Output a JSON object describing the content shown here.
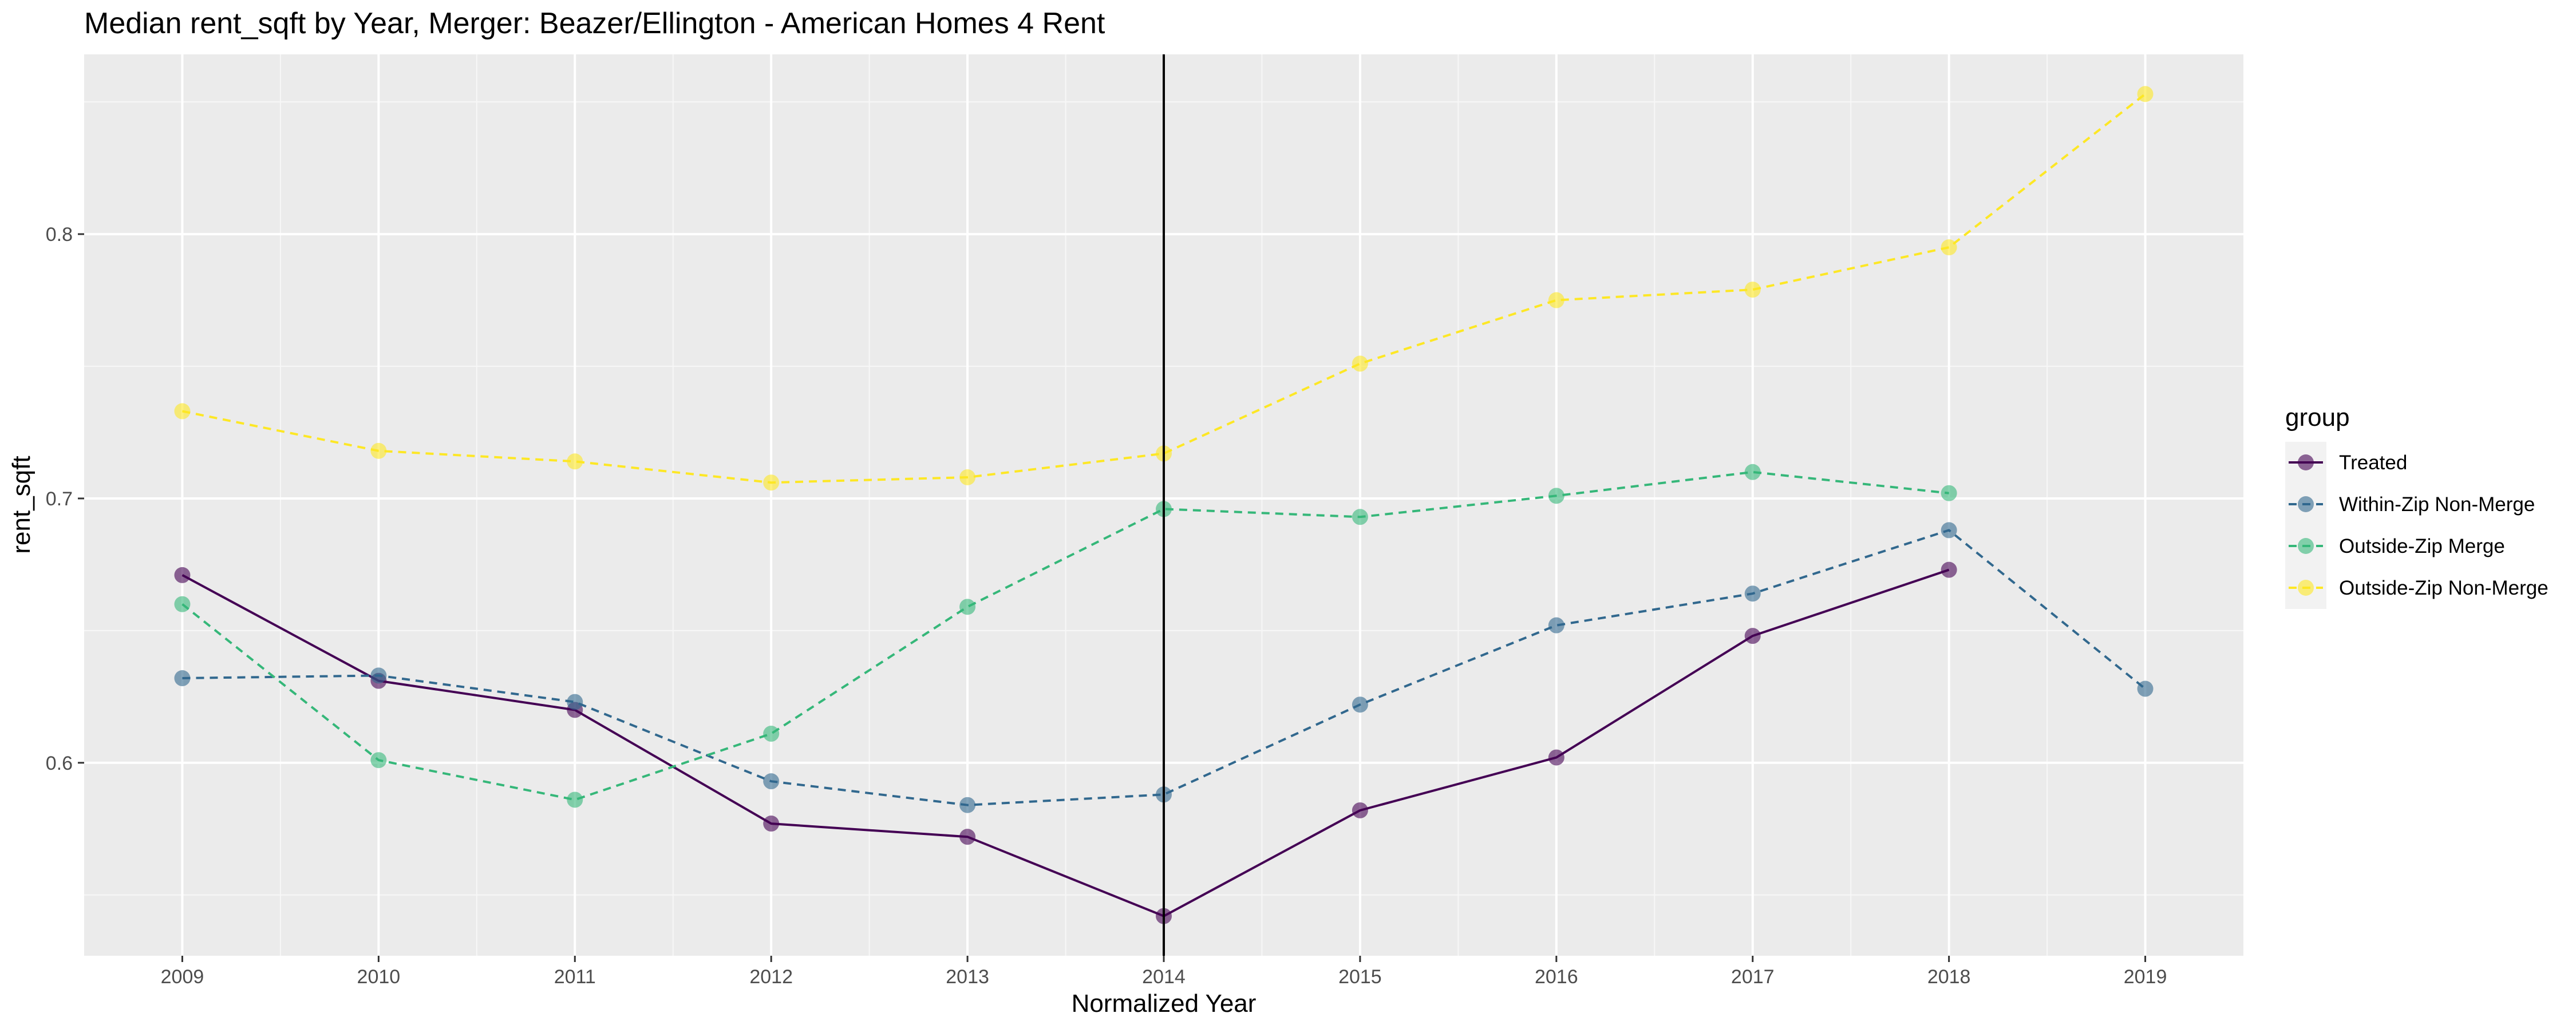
{
  "chart_data": {
    "type": "line",
    "title": "Median rent_sqft by Year, Merger: Beazer/Ellington - American Homes 4 Rent",
    "xlabel": "Normalized Year",
    "ylabel": "rent_sqft",
    "x_ticks": [
      "2009",
      "2010",
      "2011",
      "2012",
      "2013",
      "2014",
      "2015",
      "2016",
      "2017",
      "2018",
      "2019"
    ],
    "y_ticks": [
      "0.6",
      "0.7",
      "0.8"
    ],
    "ylim": [
      0.527,
      0.868
    ],
    "xlim": [
      2008.5,
      2019.5
    ],
    "grid": true,
    "vertical_line_x": 2014,
    "legend": {
      "title": "group",
      "position": "right"
    },
    "series": [
      {
        "name": "Treated",
        "color": "#440154",
        "dash": "solid",
        "x": [
          2009,
          2010,
          2011,
          2012,
          2013,
          2014,
          2015,
          2016,
          2017,
          2018
        ],
        "values": [
          0.671,
          0.631,
          0.62,
          0.577,
          0.572,
          0.542,
          0.582,
          0.602,
          0.648,
          0.673
        ]
      },
      {
        "name": "Within-Zip Non-Merge",
        "color": "#31688e",
        "dash": "dashed",
        "x": [
          2009,
          2010,
          2011,
          2012,
          2013,
          2014,
          2015,
          2016,
          2017,
          2018,
          2019
        ],
        "values": [
          0.632,
          0.633,
          0.623,
          0.593,
          0.584,
          0.588,
          0.622,
          0.652,
          0.664,
          0.688,
          0.628
        ]
      },
      {
        "name": "Outside-Zip Merge",
        "color": "#35b779",
        "dash": "dashed",
        "x": [
          2009,
          2010,
          2011,
          2012,
          2013,
          2014,
          2015,
          2016,
          2017,
          2018
        ],
        "values": [
          0.66,
          0.601,
          0.586,
          0.611,
          0.659,
          0.696,
          0.693,
          0.701,
          0.71,
          0.702
        ]
      },
      {
        "name": "Outside-Zip Non-Merge",
        "color": "#fde725",
        "dash": "dashed",
        "x": [
          2009,
          2010,
          2011,
          2012,
          2013,
          2014,
          2015,
          2016,
          2017,
          2018,
          2019
        ],
        "values": [
          0.733,
          0.718,
          0.714,
          0.706,
          0.708,
          0.717,
          0.751,
          0.775,
          0.779,
          0.795,
          0.853
        ]
      }
    ]
  }
}
